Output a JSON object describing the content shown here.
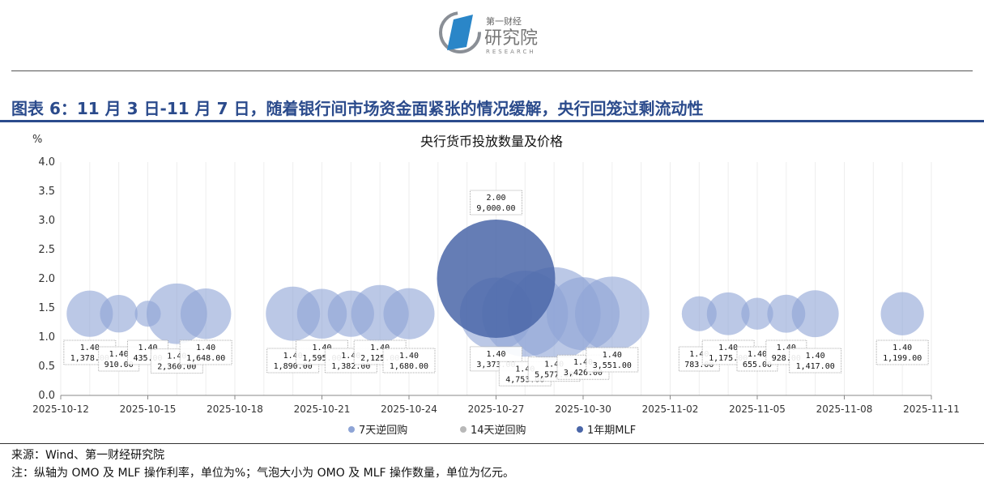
{
  "header": {
    "logo_text": "第一财经研究院 RESEARCH",
    "title": "图表 6：11 月 3 日-11 月 7 日，随着银行间市场资金面紧张的情况缓解，央行回笼过剩流动性"
  },
  "chart_data": {
    "type": "bubble",
    "title": "央行货币投放数量及价格",
    "ylabel": "%",
    "ylim": [
      0,
      4.0
    ],
    "yticks": [
      "0.0",
      "0.5",
      "1.0",
      "1.5",
      "2.0",
      "2.5",
      "3.0",
      "3.5",
      "4.0"
    ],
    "xlim": [
      "2025-10-12",
      "2025-11-11"
    ],
    "xticks": [
      "2025-10-12",
      "2025-10-15",
      "2025-10-18",
      "2025-10-21",
      "2025-10-24",
      "2025-10-27",
      "2025-10-30",
      "2025-11-02",
      "2025-11-05",
      "2025-11-08",
      "2025-11-11"
    ],
    "size_unit": "亿元",
    "legend_position": "bottom",
    "series": [
      {
        "name": "7天逆回购",
        "color": "#8ea4d6",
        "points": [
          {
            "date": "2025-10-13",
            "rate": 1.4,
            "amount": 1378,
            "label_rate": "1.40",
            "label_amount": "1,378.00"
          },
          {
            "date": "2025-10-14",
            "rate": 1.4,
            "amount": 910,
            "label_rate": "1.40",
            "label_amount": "910.00"
          },
          {
            "date": "2025-10-15",
            "rate": 1.4,
            "amount": 435,
            "label_rate": "1.40",
            "label_amount": "435.00"
          },
          {
            "date": "2025-10-16",
            "rate": 1.4,
            "amount": 2360,
            "label_rate": "1.40",
            "label_amount": "2,360.00"
          },
          {
            "date": "2025-10-17",
            "rate": 1.4,
            "amount": 1648,
            "label_rate": "1.40",
            "label_amount": "1,648.00"
          },
          {
            "date": "2025-10-20",
            "rate": 1.4,
            "amount": 1890,
            "label_rate": "1.40",
            "label_amount": "1,890.00"
          },
          {
            "date": "2025-10-21",
            "rate": 1.4,
            "amount": 1595,
            "label_rate": "1.40",
            "label_amount": "1,595.00"
          },
          {
            "date": "2025-10-22",
            "rate": 1.4,
            "amount": 1382,
            "label_rate": "1.40",
            "label_amount": "1,382.00"
          },
          {
            "date": "2025-10-23",
            "rate": 1.4,
            "amount": 2125,
            "label_rate": "1.40",
            "label_amount": "2,125.00"
          },
          {
            "date": "2025-10-24",
            "rate": 1.4,
            "amount": 1680,
            "label_rate": "1.40",
            "label_amount": "1,680.00"
          },
          {
            "date": "2025-10-27",
            "rate": 1.4,
            "amount": 3373,
            "label_rate": "1.40",
            "label_amount": "3,373.00"
          },
          {
            "date": "2025-10-28",
            "rate": 1.4,
            "amount": 4753,
            "label_rate": "1.40",
            "label_amount": "4,753.00"
          },
          {
            "date": "2025-10-29",
            "rate": 1.4,
            "amount": 5577,
            "label_rate": "1.40",
            "label_amount": "5,577.00"
          },
          {
            "date": "2025-10-30",
            "rate": 1.4,
            "amount": 3426,
            "label_rate": "1.40",
            "label_amount": "3,426.00"
          },
          {
            "date": "2025-10-31",
            "rate": 1.4,
            "amount": 3551,
            "label_rate": "1.40",
            "label_amount": "3,551.00"
          },
          {
            "date": "2025-11-03",
            "rate": 1.4,
            "amount": 783,
            "label_rate": "1.40",
            "label_amount": "783.00"
          },
          {
            "date": "2025-11-04",
            "rate": 1.4,
            "amount": 1175,
            "label_rate": "1.40",
            "label_amount": "1,175.00"
          },
          {
            "date": "2025-11-05",
            "rate": 1.4,
            "amount": 655,
            "label_rate": "1.40",
            "label_amount": "655.00"
          },
          {
            "date": "2025-11-06",
            "rate": 1.4,
            "amount": 928,
            "label_rate": "1.40",
            "label_amount": "928.00"
          },
          {
            "date": "2025-11-07",
            "rate": 1.4,
            "amount": 1417,
            "label_rate": "1.40",
            "label_amount": "1,417.00"
          },
          {
            "date": "2025-11-10",
            "rate": 1.4,
            "amount": 1199,
            "label_rate": "1.40",
            "label_amount": "1,199.00"
          }
        ]
      },
      {
        "name": "14天逆回购",
        "color": "#b8b8b8",
        "points": []
      },
      {
        "name": "1年期MLF",
        "color": "#4a66a8",
        "points": [
          {
            "date": "2025-10-27",
            "rate": 2.0,
            "amount": 9000,
            "label_rate": "2.00",
            "label_amount": "9,000.00"
          }
        ]
      }
    ]
  },
  "footer": {
    "source": "来源：Wind、第一财经研究院",
    "note": "注：纵轴为 OMO 及 MLF 操作利率，单位为%；气泡大小为 OMO 及 MLF 操作数量，单位为亿元。"
  }
}
